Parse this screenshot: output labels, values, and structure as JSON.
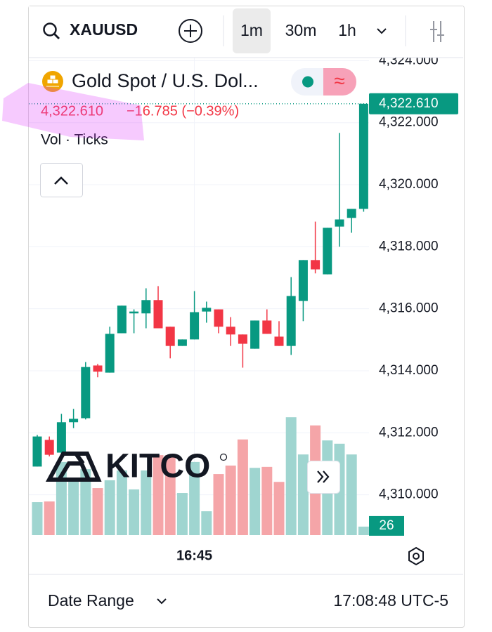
{
  "toolbar": {
    "symbol": "XAUUSD",
    "intervals": [
      "1m",
      "30m",
      "1h"
    ]
  },
  "legend": {
    "name": "Gold Spot / U.S. Dol...",
    "badge": "≈",
    "price": "4,322.610",
    "change": "−16.785 (−0.39%)",
    "indicator": "Vol · Ticks"
  },
  "watermark": "KITCO",
  "footer": {
    "range": "Date Range",
    "clock": "17:08:48 UTC-5"
  },
  "chart_data": {
    "type": "candlestick",
    "categories": [
      null,
      null,
      null,
      null,
      null,
      null,
      null,
      null,
      null,
      null,
      null,
      null,
      null,
      "16:45",
      null,
      null,
      null,
      null,
      null,
      null,
      null,
      null,
      null,
      null,
      null,
      null,
      null,
      null
    ],
    "open": [
      4310.91,
      4311.77,
      4311.36,
      4312.34,
      4312.47,
      4314.17,
      4313.94,
      4315.21,
      4315.85,
      4315.85,
      4316.28,
      4315.42,
      4314.8,
      4315.01,
      4315.91,
      4315.98,
      4315.42,
      4315.17,
      4314.71,
      4315.62,
      4315.1,
      4314.8,
      4316.25,
      4317.57,
      4317.11,
      4318.65,
      4318.93,
      4319.22
    ],
    "high": [
      4311.93,
      4311.88,
      4312.61,
      4312.77,
      4314.28,
      4314.22,
      4315.42,
      4316.1,
      4315.98,
      4316.66,
      4316.73,
      4315.42,
      4315.01,
      4316.57,
      4316.23,
      4315.98,
      4315.73,
      4315.17,
      4315.62,
      4315.98,
      4315.6,
      4317.02,
      4317.57,
      4318.81,
      4318.61,
      4321.67,
      4319.22,
      4322.61
    ],
    "low": [
      4310.91,
      4311.24,
      4311.29,
      4312.15,
      4312.43,
      4313.79,
      4313.94,
      4315.21,
      4315.21,
      4315.37,
      4315.37,
      4314.4,
      4314.8,
      4315.01,
      4315.55,
      4315.21,
      4314.8,
      4314.1,
      4314.71,
      4315.19,
      4314.8,
      4314.51,
      4315.6,
      4317.14,
      4317.11,
      4318.0,
      4318.45,
      4319.13
    ],
    "close": [
      4311.88,
      4311.29,
      4312.34,
      4312.45,
      4314.12,
      4313.97,
      4315.19,
      4316.1,
      4315.91,
      4316.28,
      4315.37,
      4314.8,
      4315.01,
      4315.89,
      4316.03,
      4315.42,
      4315.17,
      4314.87,
      4315.62,
      4315.19,
      4314.8,
      4316.41,
      4317.57,
      4317.27,
      4318.61,
      4318.88,
      4319.22,
      4322.61
    ],
    "up_color": "#089981",
    "down_color": "#f23645",
    "ylim": [
      4308.7,
      4324.1
    ],
    "yticks": [
      {
        "value": 4310,
        "label": "4,310.000"
      },
      {
        "value": 4312,
        "label": "4,312.000"
      },
      {
        "value": 4314,
        "label": "4,314.000"
      },
      {
        "value": 4316,
        "label": "4,316.000"
      },
      {
        "value": 4318,
        "label": "4,318.000"
      },
      {
        "value": 4320,
        "label": "4,320.000"
      },
      {
        "value": 4322,
        "label": "4,322.000"
      },
      {
        "value": 4324,
        "label": "4,324.000"
      }
    ],
    "last_price": {
      "value": 4322.61,
      "label": "4,322.610"
    },
    "grid": true,
    "volume": {
      "values": [
        101,
        103,
        224,
        168,
        202,
        144,
        168,
        198,
        140,
        198,
        245,
        245,
        129,
        224,
        73,
        187,
        213,
        293,
        206,
        209,
        163,
        361,
        247,
        336,
        290,
        280,
        247,
        26
      ],
      "ylim": [
        0,
        370
      ],
      "up_color": "#9fd5d0",
      "down_color": "#f5a5a8"
    }
  }
}
